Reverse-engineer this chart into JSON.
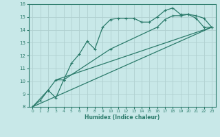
{
  "xlabel": "Humidex (Indice chaleur)",
  "bg_color": "#c8e8e8",
  "grid_color": "#b0d0d0",
  "line_color": "#2a7a6a",
  "xlim": [
    -0.5,
    23.5
  ],
  "ylim": [
    8,
    16
  ],
  "xticks": [
    0,
    1,
    2,
    3,
    4,
    5,
    6,
    7,
    8,
    9,
    10,
    11,
    12,
    13,
    14,
    15,
    16,
    17,
    18,
    19,
    20,
    21,
    22,
    23
  ],
  "yticks": [
    8,
    9,
    10,
    11,
    12,
    13,
    14,
    15,
    16
  ],
  "line1_x": [
    0,
    1,
    2,
    3,
    4,
    5,
    6,
    7,
    8,
    9,
    10,
    11,
    12,
    13,
    14,
    15,
    16,
    17,
    18,
    19,
    20,
    21,
    22,
    23
  ],
  "line1_y": [
    8.0,
    8.5,
    9.3,
    8.7,
    10.1,
    11.4,
    12.1,
    13.1,
    12.5,
    14.2,
    14.8,
    14.9,
    14.9,
    14.9,
    14.6,
    14.6,
    15.0,
    15.5,
    15.7,
    15.2,
    15.2,
    14.9,
    14.2,
    14.2
  ],
  "line2_x": [
    0,
    2,
    3,
    4,
    10,
    16,
    17,
    18,
    19,
    20,
    21,
    22,
    23
  ],
  "line2_y": [
    8.0,
    9.3,
    10.1,
    10.1,
    12.5,
    14.2,
    14.8,
    15.1,
    15.1,
    15.2,
    15.1,
    14.9,
    14.2
  ],
  "line3_x": [
    0,
    23
  ],
  "line3_y": [
    8.0,
    14.2
  ],
  "line4_x": [
    3,
    23
  ],
  "line4_y": [
    10.1,
    14.2
  ]
}
